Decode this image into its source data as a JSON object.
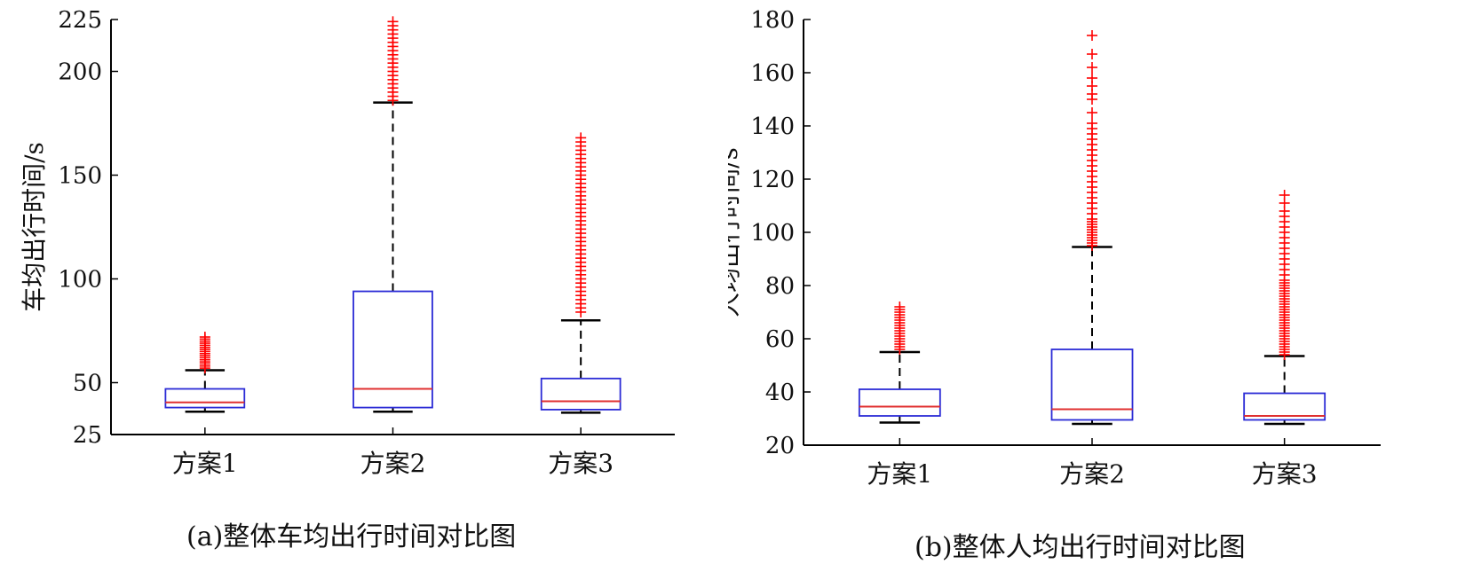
{
  "chart_data": [
    {
      "type": "boxplot",
      "caption": "(a)整体车均出行时间对比图",
      "ylabel": "车均出行时间/s",
      "xlabel": "",
      "ylim": [
        25,
        225
      ],
      "yticks": [
        25,
        50,
        100,
        150,
        200,
        225
      ],
      "categories": [
        "方案1",
        "方案2",
        "方案3"
      ],
      "boxes": [
        {
          "name": "方案1",
          "whisker_low": 36,
          "q1": 38,
          "median": 40.5,
          "q3": 47,
          "whisker_high": 56,
          "outliers": [
            57,
            58,
            59,
            60,
            61,
            62,
            63,
            64,
            65,
            66,
            67,
            68,
            69,
            70,
            71,
            72
          ]
        },
        {
          "name": "方案2",
          "whisker_low": 36,
          "q1": 38,
          "median": 47,
          "q3": 94,
          "whisker_high": 185,
          "outliers": [
            186,
            188,
            190,
            192,
            194,
            196,
            198,
            200,
            202,
            204,
            206,
            208,
            210,
            212,
            214,
            216,
            218,
            220,
            222,
            224
          ]
        },
        {
          "name": "方案3",
          "whisker_low": 35.5,
          "q1": 37,
          "median": 41,
          "q3": 52,
          "whisker_high": 80,
          "outliers": [
            84,
            86,
            88,
            90,
            92,
            94,
            96,
            98,
            100,
            102,
            104,
            106,
            108,
            110,
            112,
            114,
            116,
            118,
            120,
            122,
            124,
            126,
            128,
            130,
            132,
            134,
            136,
            138,
            140,
            142,
            144,
            146,
            148,
            150,
            152,
            154,
            156,
            158,
            160,
            162,
            164,
            166,
            168
          ]
        }
      ],
      "colors": {
        "box": "#2b2bd6",
        "median": "#e03030",
        "whisker": "#000000",
        "outlier": "#ff0000"
      }
    },
    {
      "type": "boxplot",
      "caption": "(b)整体人均出行时间对比图",
      "ylabel": "人均出行时间/s",
      "xlabel": "",
      "ylim": [
        20,
        180
      ],
      "yticks": [
        20,
        40,
        60,
        80,
        100,
        120,
        140,
        160,
        180
      ],
      "categories": [
        "方案1",
        "方案2",
        "方案3"
      ],
      "boxes": [
        {
          "name": "方案1",
          "whisker_low": 28.5,
          "q1": 31,
          "median": 34.5,
          "q3": 41,
          "whisker_high": 55,
          "outliers": [
            56,
            57,
            58,
            59,
            60,
            61,
            62,
            63,
            64,
            65,
            66,
            67,
            68,
            69,
            70,
            71,
            72
          ]
        },
        {
          "name": "方案2",
          "whisker_low": 28,
          "q1": 29.5,
          "median": 33.5,
          "q3": 56,
          "whisker_high": 94.5,
          "outliers": [
            95,
            96,
            97,
            98,
            99,
            100,
            101,
            102,
            103,
            104,
            105,
            107,
            109,
            111,
            113,
            115,
            117,
            119,
            121,
            123,
            125,
            127,
            129,
            131,
            133,
            135,
            137,
            139,
            141,
            145,
            150,
            152,
            155,
            158,
            162,
            167,
            174
          ]
        },
        {
          "name": "方案3",
          "whisker_low": 28,
          "q1": 29.5,
          "median": 31,
          "q3": 39.5,
          "whisker_high": 53.5,
          "outliers": [
            54,
            55,
            56,
            57,
            58,
            59,
            60,
            61,
            62,
            63,
            64,
            65,
            66,
            67,
            68,
            69,
            70,
            71,
            72,
            73,
            74,
            75,
            76,
            77,
            78,
            79,
            80,
            81,
            82,
            84,
            86,
            88,
            90,
            92,
            94,
            96,
            98,
            100,
            102,
            104,
            106,
            108,
            111,
            114
          ]
        }
      ],
      "colors": {
        "box": "#2b2bd6",
        "median": "#e03030",
        "whisker": "#000000",
        "outlier": "#ff0000"
      }
    }
  ]
}
